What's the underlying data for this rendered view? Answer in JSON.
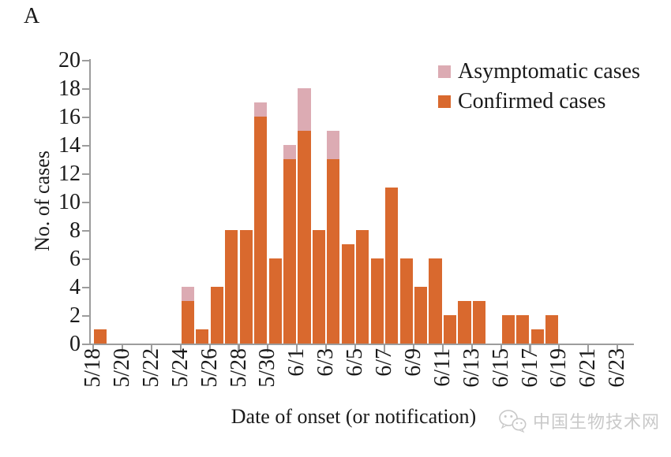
{
  "figure": {
    "panel_label": "A",
    "watermark": {
      "icon": "wechat-icon",
      "text": "中国生物技术网"
    }
  },
  "chart_data": {
    "type": "bar",
    "stacked": true,
    "title": "",
    "xlabel": "Date of onset (or notification)",
    "ylabel": "No. of cases",
    "ylim": [
      0,
      20
    ],
    "ytick_step": 2,
    "grid": false,
    "legend_position": "top-right",
    "categories": [
      "5/18",
      "5/19",
      "5/20",
      "5/21",
      "5/22",
      "5/23",
      "5/24",
      "5/25",
      "5/26",
      "5/27",
      "5/28",
      "5/29",
      "5/30",
      "5/31",
      "6/1",
      "6/2",
      "6/3",
      "6/4",
      "6/5",
      "6/6",
      "6/7",
      "6/8",
      "6/9",
      "6/10",
      "6/11",
      "6/12",
      "6/13",
      "6/14",
      "6/15",
      "6/16",
      "6/17",
      "6/18",
      "6/19",
      "6/20",
      "6/21",
      "6/22",
      "6/23"
    ],
    "x_tick_labels": [
      "5/18",
      "5/20",
      "5/22",
      "5/24",
      "5/26",
      "5/28",
      "5/30",
      "6/1",
      "6/3",
      "6/5",
      "6/7",
      "6/9",
      "6/11",
      "6/13",
      "6/15",
      "6/17",
      "6/19",
      "6/21",
      "6/23"
    ],
    "series": [
      {
        "name": "Confirmed cases",
        "color": "#d9692e",
        "values": [
          1,
          0,
          0,
          0,
          0,
          0,
          3,
          1,
          4,
          8,
          8,
          16,
          6,
          13,
          15,
          8,
          13,
          7,
          8,
          6,
          11,
          6,
          4,
          6,
          2,
          3,
          3,
          0,
          2,
          2,
          1,
          2,
          0,
          0,
          0,
          0,
          0
        ]
      },
      {
        "name": "Asymptomatic cases",
        "color": "#dcabb3",
        "values": [
          0,
          0,
          0,
          0,
          0,
          0,
          1,
          0,
          0,
          0,
          0,
          1,
          0,
          1,
          3,
          0,
          2,
          0,
          0,
          0,
          0,
          0,
          0,
          0,
          0,
          0,
          0,
          0,
          0,
          0,
          0,
          0,
          0,
          0,
          0,
          0,
          0
        ]
      }
    ],
    "legend": [
      {
        "label": "Asymptomatic cases",
        "color": "#dcabb3"
      },
      {
        "label": "Confirmed cases",
        "color": "#d9692e"
      }
    ]
  },
  "colors": {
    "confirmed": "#d9692e",
    "asymptomatic": "#dcabb3",
    "axis": "#9c9c9c",
    "text": "#1a1a1a",
    "watermark": "#c9c9c9"
  }
}
